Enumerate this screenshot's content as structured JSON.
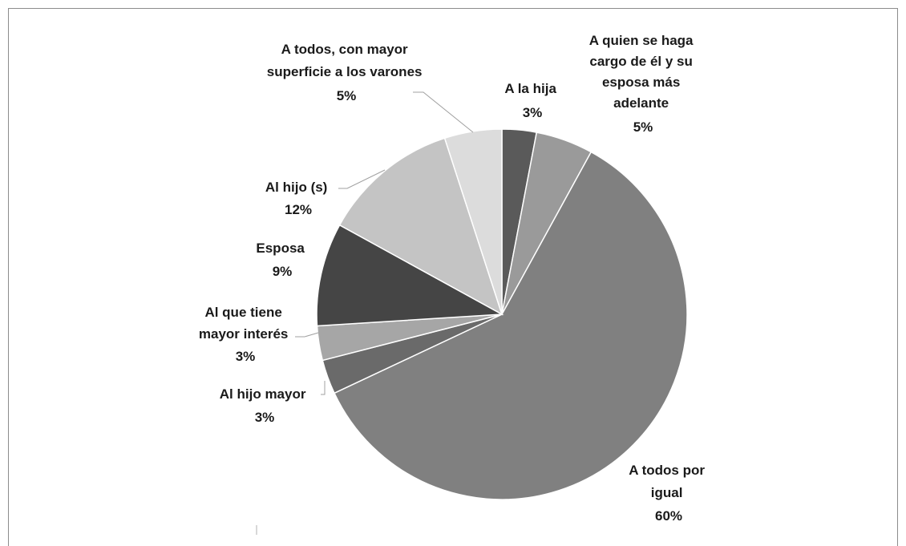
{
  "chart_data": {
    "type": "pie",
    "title": "",
    "start_angle_deg": 0,
    "direction": "clockwise",
    "slices": [
      {
        "label_lines": [
          "A la hija"
        ],
        "value_label": "3%",
        "value": 3,
        "color": "#5a5a5a"
      },
      {
        "label_lines": [
          "A quien se haga",
          "cargo de él y su",
          "esposa más",
          "adelante"
        ],
        "value_label": "5%",
        "value": 5,
        "color": "#9a9a9a"
      },
      {
        "label_lines": [
          "A todos por",
          "igual"
        ],
        "value_label": "60%",
        "value": 60,
        "color": "#808080"
      },
      {
        "label_lines": [
          "Al hijo mayor"
        ],
        "value_label": "3%",
        "value": 3,
        "color": "#6a6a6a"
      },
      {
        "label_lines": [
          "Al que tiene",
          "mayor interés"
        ],
        "value_label": "3%",
        "value": 3,
        "color": "#a6a6a6"
      },
      {
        "label_lines": [
          "Esposa"
        ],
        "value_label": "9%",
        "value": 9,
        "color": "#454545"
      },
      {
        "label_lines": [
          "Al hijo (s)"
        ],
        "value_label": "12%",
        "value": 12,
        "color": "#c4c4c4"
      },
      {
        "label_lines": [
          "A todos, con mayor",
          "superficie a los varones"
        ],
        "value_label": "5%",
        "value": 5,
        "color": "#dcdcdc"
      }
    ]
  }
}
